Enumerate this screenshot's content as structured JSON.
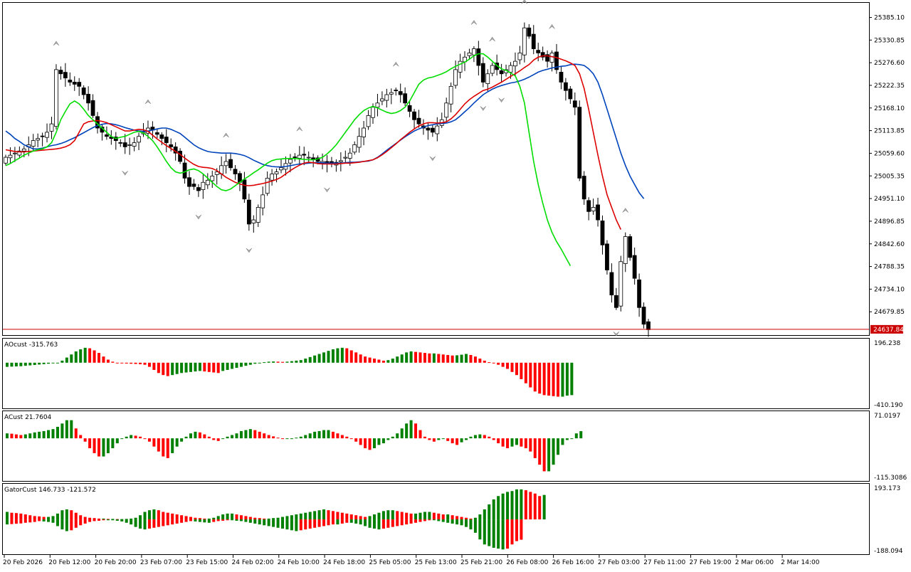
{
  "chart_data": {
    "type": "candlestick",
    "price_axis": {
      "ticks": [
        "25385.10",
        "25330.85",
        "25276.60",
        "25222.35",
        "25168.10",
        "25113.85",
        "25059.60",
        "25005.35",
        "24951.10",
        "24896.85",
        "24842.60",
        "24788.35",
        "24734.10",
        "24679.85"
      ],
      "current_price_label": "24637.84",
      "current_price": 24637.84,
      "ylim": [
        24624,
        25420
      ]
    },
    "time_axis": {
      "labels": [
        "20 Feb 2026",
        "20 Feb 12:00",
        "20 Feb 20:00",
        "23 Feb 07:00",
        "23 Feb 15:00",
        "24 Feb 02:00",
        "24 Feb 10:00",
        "24 Feb 18:00",
        "25 Feb 05:00",
        "25 Feb 13:00",
        "25 Feb 21:00",
        "26 Feb 08:00",
        "26 Feb 16:00",
        "27 Feb 03:00",
        "27 Feb 11:00",
        "27 Feb 19:00",
        "2 Mar 06:00",
        "2 Mar 14:00"
      ]
    },
    "colors": {
      "up_candle": "#ffffff",
      "down_candle": "#000000",
      "jaw": "#0044bb",
      "teeth": "#dd0000",
      "lips": "#00dd00",
      "hist_up": "#008000",
      "hist_down": "#ff0000",
      "price_line": "#cc0000"
    },
    "price_guide": {
      "close": [
        25050,
        25055,
        25060,
        25065,
        25070,
        25080,
        25090,
        25095,
        25100,
        25110,
        25130,
        25260,
        25250,
        25240,
        25230,
        25225,
        25220,
        25200,
        25180,
        25150,
        25120,
        25110,
        25100,
        25095,
        25090,
        25085,
        25075,
        25080,
        25085,
        25100,
        25110,
        25120,
        25115,
        25105,
        25095,
        25085,
        25075,
        25060,
        25040,
        25000,
        24980,
        24980,
        24970,
        24990,
        24995,
        25005,
        25015,
        25030,
        25040,
        25025,
        25010,
        24990,
        24950,
        24890,
        24900,
        24930,
        24960,
        25000,
        25010,
        25015,
        25025,
        25035,
        25045,
        25050,
        25055,
        25055,
        25050,
        25045,
        25040,
        25040,
        25035,
        25035,
        25038,
        25042,
        25050,
        25060,
        25080,
        25100,
        25120,
        25150,
        25170,
        25180,
        25190,
        25200,
        25205,
        25210,
        25200,
        25180,
        25160,
        25140,
        25130,
        25120,
        25115,
        25110,
        25125,
        25140,
        25180,
        25220,
        25260,
        25280,
        25290,
        25300,
        25310,
        25270,
        25230,
        25250,
        25270,
        25260,
        25250,
        25260,
        25270,
        25280,
        25300,
        25360,
        25340,
        25310,
        25300,
        25290,
        25280,
        25300,
        25260,
        25230,
        25210,
        25190,
        25170,
        25000,
        24950,
        24920,
        24930,
        24900,
        24840,
        24780,
        24720,
        24690,
        24800,
        24860,
        24810,
        24760,
        24690,
        24650,
        24637
      ]
    },
    "indicator_lines": {
      "jaw": [
        25113,
        25105,
        25095,
        25088,
        25080,
        25075,
        25070,
        25070,
        25072,
        25075,
        25078,
        25080,
        25083,
        25087,
        25092,
        25097,
        25103,
        25109,
        25115,
        25121,
        25126,
        25129,
        25131,
        25130,
        25128,
        25125,
        25121,
        25118,
        25115,
        25113,
        25112,
        25113,
        25115,
        25118,
        25120,
        25120,
        25117,
        25112,
        25107,
        25098,
        25089,
        25080,
        25073,
        25068,
        25064,
        25062,
        25061,
        25060,
        25060,
        25060,
        25059,
        25057,
        25054,
        25049,
        25043,
        25038,
        25033,
        25030,
        25028,
        25027,
        25027,
        25028,
        25030,
        25032,
        25034,
        25035,
        25036,
        25037,
        25037,
        25037,
        25036,
        25036,
        25036,
        25036,
        25037,
        25038,
        25038,
        25039,
        25040,
        25041,
        25044,
        25050,
        25058,
        25067,
        25075,
        25083,
        25091,
        25099,
        25106,
        25113,
        25118,
        25122,
        25126,
        25128,
        25130,
        25131,
        25132,
        25135,
        25140,
        25149,
        25159,
        25169,
        25180,
        25190,
        25200,
        25207,
        25213,
        25218,
        25222,
        25225,
        25228,
        25230,
        25233,
        25237,
        25242,
        25248,
        25254,
        25258,
        25261,
        25264,
        25266,
        25268,
        25269,
        25272,
        25273,
        25272,
        25270,
        25262,
        25250,
        25230,
        25200,
        25165,
        25130,
        25095,
        25060,
        25030,
        25005,
        24985,
        24965,
        24951
      ],
      "teeth": [
        25068,
        25066,
        25064,
        25063,
        25063,
        25064,
        25065,
        25066,
        25067,
        25068,
        25069,
        25070,
        25072,
        25075,
        25080,
        25090,
        25110,
        25130,
        25135,
        25137,
        25138,
        25136,
        25133,
        25128,
        25123,
        25118,
        25113,
        25113,
        25115,
        25117,
        25116,
        25112,
        25103,
        25094,
        25086,
        25078,
        25071,
        25064,
        25057,
        25048,
        25040,
        25033,
        25028,
        25026,
        25025,
        25023,
        25018,
        25010,
        25002,
        24996,
        24990,
        24986,
        24983,
        24982,
        24983,
        24985,
        24987,
        24990,
        24993,
        24997,
        25002,
        25010,
        25018,
        25025,
        25031,
        25036,
        25038,
        25037,
        25035,
        25034,
        25034,
        25034,
        25034,
        25035,
        25036,
        25036,
        25037,
        25038,
        25040,
        25042,
        25044,
        25049,
        25056,
        25064,
        25073,
        25082,
        25092,
        25101,
        25110,
        25118,
        25125,
        25130,
        25133,
        25133,
        25132,
        25133,
        25135,
        25142,
        25152,
        25165,
        25178,
        25188,
        25196,
        25203,
        25210,
        25213,
        25218,
        25224,
        25230,
        25237,
        25244,
        25250,
        25257,
        25265,
        25272,
        25283,
        25290,
        25293,
        25293,
        25291,
        25289,
        25285,
        25281,
        25276,
        25270,
        25250,
        25215,
        25165,
        25110,
        25055,
        25005,
        24960,
        24930,
        24900,
        24877
      ],
      "lips": [
        25030,
        25035,
        25042,
        25048,
        25055,
        25060,
        25065,
        25068,
        25070,
        25075,
        25085,
        25110,
        25140,
        25160,
        25178,
        25185,
        25178,
        25165,
        25150,
        25140,
        25130,
        25120,
        25110,
        25100,
        25095,
        25098,
        25100,
        25105,
        25110,
        25112,
        25108,
        25100,
        25090,
        25075,
        25058,
        25040,
        25025,
        25015,
        25012,
        25015,
        25020,
        25022,
        25018,
        25010,
        25000,
        24990,
        24980,
        24972,
        24970,
        24974,
        24982,
        24990,
        24998,
        25005,
        25013,
        25020,
        25028,
        25036,
        25042,
        25045,
        25046,
        25047,
        25047,
        25047,
        25046,
        25045,
        25044,
        25044,
        25046,
        25050,
        25058,
        25068,
        25080,
        25095,
        25110,
        25125,
        25140,
        25152,
        25162,
        25168,
        25172,
        25168,
        25163,
        25158,
        25155,
        25157,
        25162,
        25170,
        25185,
        25205,
        25225,
        25235,
        25240,
        25242,
        25246,
        25250,
        25255,
        25262,
        25268,
        25273,
        25278,
        25285,
        25293,
        25298,
        25298,
        25290,
        25280,
        25270,
        25262,
        25258,
        25252,
        25245,
        25220,
        25180,
        25110,
        25040,
        24985,
        24940,
        24900,
        24870,
        24848,
        24830,
        24810,
        24790
      ],
      "start_index": [
        0,
        0,
        0
      ]
    },
    "panes": [
      {
        "label": "AOcust -315.763",
        "ticks": [
          "196.238",
          "-410.190"
        ],
        "range": [
          -430,
          220
        ],
        "values": [
          -40,
          -38,
          -36,
          -34,
          -30,
          -26,
          -22,
          -18,
          -14,
          -10,
          -6,
          0,
          20,
          50,
          80,
          110,
          130,
          145,
          140,
          120,
          95,
          60,
          30,
          10,
          0,
          -5,
          -8,
          -10,
          -12,
          -15,
          -20,
          -40,
          -70,
          -100,
          -120,
          -130,
          -120,
          -110,
          -100,
          -95,
          -90,
          -85,
          -80,
          -85,
          -90,
          -95,
          -100,
          -80,
          -70,
          -60,
          -50,
          -40,
          -30,
          -20,
          -10,
          0,
          5,
          10,
          12,
          10,
          8,
          10,
          15,
          20,
          25,
          40,
          55,
          70,
          85,
          100,
          115,
          130,
          140,
          145,
          140,
          120,
          100,
          80,
          60,
          50,
          40,
          30,
          20,
          25,
          40,
          60,
          80,
          100,
          110,
          105,
          100,
          95,
          90,
          90,
          85,
          80,
          75,
          70,
          72,
          78,
          85,
          75,
          60,
          40,
          20,
          5,
          -5,
          -20,
          -40,
          -60,
          -90,
          -120,
          -160,
          -200,
          -240,
          -280,
          -300,
          -315,
          -320,
          -325,
          -330,
          -330,
          -320,
          -315
        ]
      },
      {
        "label": "ACust 21.7604",
        "ticks": [
          "71.0197",
          "-115.3086"
        ],
        "range": [
          -125,
          78
        ],
        "values": [
          15,
          14,
          12,
          10,
          12,
          15,
          18,
          20,
          22,
          25,
          28,
          35,
          45,
          55,
          55,
          30,
          10,
          -10,
          -30,
          -45,
          -55,
          -55,
          -45,
          -30,
          -15,
          0,
          5,
          10,
          8,
          5,
          0,
          -10,
          -25,
          -40,
          -55,
          -60,
          -45,
          -25,
          -10,
          5,
          15,
          20,
          18,
          12,
          5,
          -5,
          -8,
          0,
          5,
          10,
          15,
          22,
          25,
          28,
          25,
          20,
          15,
          10,
          6,
          2,
          0,
          0,
          0,
          2,
          5,
          10,
          15,
          20,
          22,
          25,
          25,
          20,
          15,
          10,
          5,
          0,
          -10,
          -20,
          -30,
          -35,
          -30,
          -20,
          -15,
          -5,
          5,
          15,
          30,
          45,
          55,
          45,
          25,
          5,
          -5,
          -10,
          -5,
          0,
          -8,
          -15,
          -20,
          -12,
          -5,
          5,
          10,
          12,
          10,
          5,
          -5,
          -15,
          -25,
          -30,
          -25,
          -20,
          -25,
          -30,
          -40,
          -60,
          -80,
          -100,
          -100,
          -80,
          -50,
          -20,
          -5,
          0,
          15,
          21.76
        ]
      },
      {
        "label": "GatorCust 146.733 -121.572",
        "ticks": [
          "193.173",
          "-188.094"
        ],
        "upper_values": [
          45,
          40,
          38,
          35,
          30,
          25,
          20,
          18,
          15,
          15,
          20,
          35,
          55,
          60,
          55,
          40,
          25,
          15,
          10,
          8,
          5,
          5,
          3,
          3,
          2,
          2,
          3,
          5,
          10,
          25,
          45,
          55,
          60,
          55,
          45,
          40,
          35,
          30,
          25,
          20,
          15,
          10,
          8,
          5,
          5,
          10,
          20,
          30,
          35,
          35,
          30,
          25,
          20,
          15,
          10,
          8,
          5,
          5,
          8,
          10,
          15,
          20,
          25,
          30,
          35,
          40,
          45,
          50,
          55,
          60,
          55,
          50,
          45,
          40,
          35,
          30,
          25,
          20,
          15,
          20,
          30,
          40,
          50,
          55,
          55,
          50,
          45,
          40,
          35,
          35,
          40,
          45,
          45,
          40,
          35,
          30,
          30,
          25,
          20,
          15,
          10,
          5,
          10,
          30,
          60,
          90,
          120,
          140,
          155,
          165,
          170,
          180,
          180,
          175,
          165,
          155,
          140,
          146.7
        ],
        "lower_values": [
          -30,
          -28,
          -26,
          -24,
          -20,
          -18,
          -15,
          -10,
          -12,
          -15,
          -20,
          -40,
          -60,
          -70,
          -65,
          -50,
          -35,
          -25,
          -15,
          -10,
          -8,
          -5,
          -5,
          -5,
          -8,
          -12,
          -20,
          -30,
          -45,
          -55,
          -60,
          -55,
          -50,
          -45,
          -40,
          -35,
          -30,
          -25,
          -20,
          -15,
          -10,
          -12,
          -15,
          -18,
          -20,
          -15,
          -10,
          -8,
          -5,
          -5,
          -8,
          -10,
          -15,
          -20,
          -25,
          -30,
          -35,
          -40,
          -45,
          -50,
          -55,
          -60,
          -65,
          -70,
          -65,
          -60,
          -55,
          -50,
          -45,
          -40,
          -35,
          -30,
          -30,
          -25,
          -20,
          -20,
          -25,
          -30,
          -40,
          -50,
          -55,
          -60,
          -55,
          -50,
          -45,
          -40,
          -35,
          -30,
          -25,
          -20,
          -15,
          -10,
          -5,
          -5,
          -10,
          -15,
          -20,
          -25,
          -30,
          -35,
          -45,
          -60,
          -80,
          -120,
          -150,
          -160,
          -170,
          -175,
          -180,
          -175,
          -150,
          -130,
          -121.6
        ],
        "range": [
          -200,
          205
        ]
      }
    ]
  }
}
